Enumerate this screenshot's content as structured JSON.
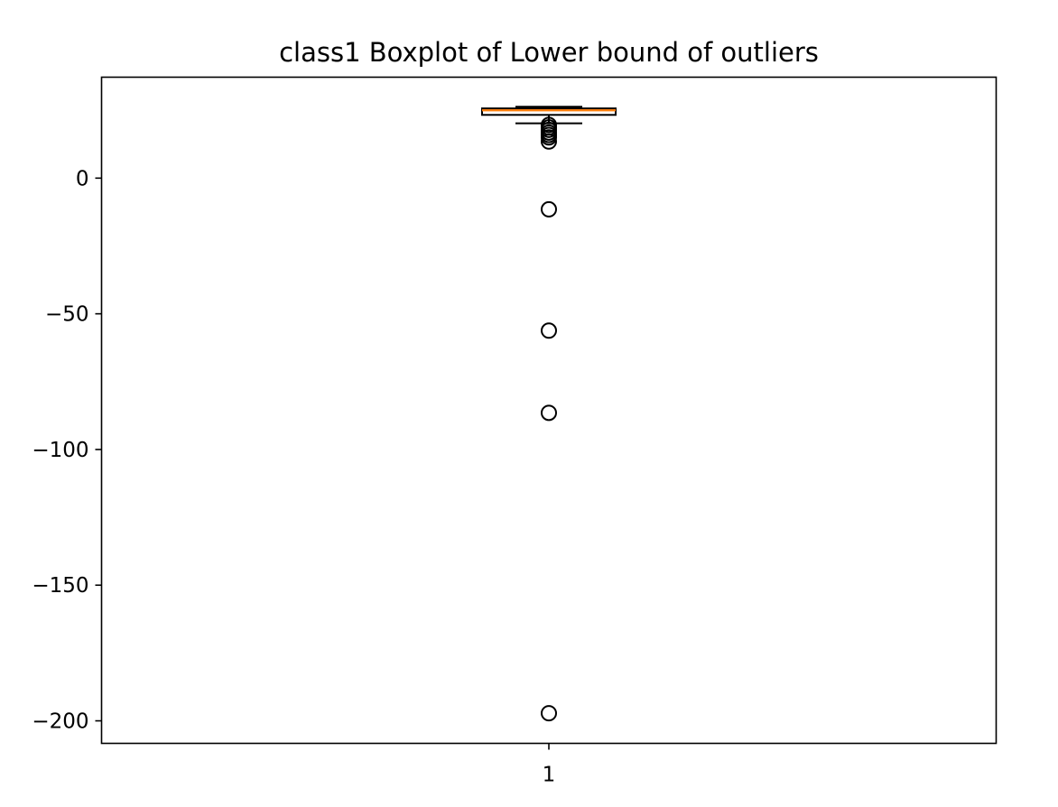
{
  "chart_data": {
    "type": "boxplot",
    "title": "class1 Boxplot of Lower bound of outliers",
    "xlabel": "",
    "ylabel": "",
    "categories": [
      "1"
    ],
    "ylim": [
      -208.3,
      37.2
    ],
    "yticks": [
      0,
      -50,
      -100,
      -150,
      -200
    ],
    "ytick_labels": [
      "0",
      "−50",
      "−100",
      "−150",
      "−200"
    ],
    "grid": false,
    "boxes": [
      {
        "category": "1",
        "whisker_low": 20.2,
        "q1": 23.3,
        "median": 25.0,
        "q3": 25.7,
        "whisker_high": 26.3,
        "outliers": [
          19.6,
          18.7,
          17.8,
          16.8,
          15.9,
          15.0,
          13.5,
          -11.5,
          -56.2,
          -86.5,
          -197.2
        ]
      }
    ],
    "colors": {
      "median": "#ff7f0e",
      "box": "#000000",
      "outlier": "#000000"
    }
  }
}
